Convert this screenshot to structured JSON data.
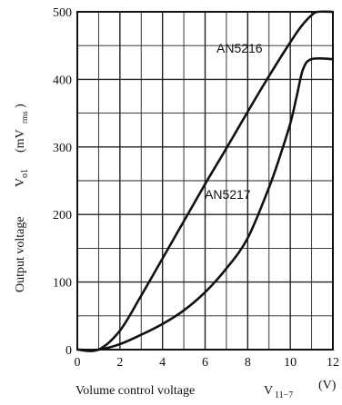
{
  "chart_data": {
    "type": "line",
    "title": "",
    "xlabel": "Volume control voltage",
    "xlabel_symbol": "V",
    "xlabel_symbol_sub": "11−7",
    "xlabel_unit": "(V)",
    "ylabel": "Output voltage",
    "ylabel_symbol": "V",
    "ylabel_symbol_sub": "o1",
    "ylabel_unit": "(mV",
    "ylabel_unit_sub": "rms",
    "ylabel_unit_close": ")",
    "xlim": [
      0,
      12
    ],
    "ylim": [
      0,
      500
    ],
    "x_ticks": [
      "0",
      "2",
      "4",
      "6",
      "8",
      "10",
      "12"
    ],
    "y_ticks": [
      "0",
      "100",
      "200",
      "300",
      "400",
      "500"
    ],
    "grid": true,
    "series": [
      {
        "name": "AN5216",
        "color": "#111111",
        "x": [
          0,
          1,
          2,
          3,
          4,
          5,
          6,
          7,
          8,
          9,
          10,
          10.5,
          11,
          11.3,
          12
        ],
        "y": [
          0,
          0,
          28,
          80,
          135,
          190,
          245,
          298,
          352,
          405,
          455,
          478,
          495,
          500,
          500
        ]
      },
      {
        "name": "AN5217",
        "color": "#111111",
        "x": [
          0,
          1,
          2,
          3,
          4,
          5,
          6,
          7,
          8,
          9,
          9.5,
          10,
          10.3,
          10.6,
          11,
          12
        ],
        "y": [
          0,
          0,
          8,
          22,
          38,
          58,
          85,
          120,
          165,
          240,
          285,
          335,
          375,
          415,
          430,
          430
        ]
      }
    ]
  }
}
